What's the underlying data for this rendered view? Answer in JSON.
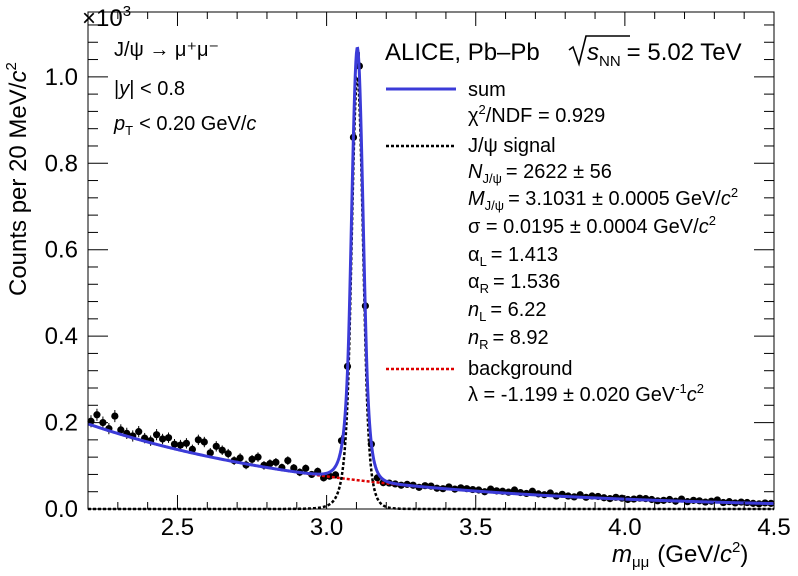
{
  "chart_data": {
    "type": "scatter",
    "experiment": "ALICE, Pb–Pb",
    "energy": "= 5.02 TeV",
    "sqrt_label": "s",
    "sqrt_sub": "NN",
    "y_multiplier": "×10",
    "y_multiplier_exp": "3",
    "ylabel": "Counts per 20 MeV/",
    "ylabel_c": "c",
    "ylabel_exp": "2",
    "xlabel_m": "m",
    "xlabel_sub": "μμ",
    "xlabel_unit": "(GeV/",
    "xlabel_c": "c",
    "xlabel_exp": "2",
    "xlabel_close": ")",
    "xlim": [
      2.2,
      4.5
    ],
    "ylim": [
      0,
      1.15
    ],
    "xticks": [
      2.5,
      3.0,
      3.5,
      4.0,
      4.5
    ],
    "xtick_labels": [
      "2.5",
      "3.0",
      "3.5",
      "4.0",
      "4.5"
    ],
    "yticks": [
      0.0,
      0.2,
      0.4,
      0.6,
      0.8,
      1.0
    ],
    "ytick_labels": [
      "0.0",
      "0.2",
      "0.4",
      "0.6",
      "0.8",
      "1.0"
    ],
    "selection": {
      "decay": "J/ψ → μ⁺μ⁻",
      "rapidity_y": "y",
      "rapidity_cut": "< 0.8",
      "pt_p": "p",
      "pt_sub": "T",
      "pt_cut": "< 0.20 GeV/",
      "pt_c": "c"
    },
    "legend": {
      "sum": "sum",
      "chi2": "χ",
      "chi2_rest": "/NDF = 0.929",
      "chi2_exp": "2",
      "signal": "J/ψ signal",
      "n_N": "N",
      "n_sub": "J/ψ",
      "n_val": "= 2622 ± 56",
      "m_M": "M",
      "m_sub": "J/ψ",
      "m_val": "= 3.1031 ± 0.0005 GeV/",
      "m_c": "c",
      "m_exp": "2",
      "sigma": "σ = 0.0195 ± 0.0004 GeV/",
      "sigma_c": "c",
      "sigma_exp": "2",
      "alphaL": "α",
      "alphaL_sub": "L",
      "alphaL_val": "= 1.413",
      "alphaR": "α",
      "alphaR_sub": "R",
      "alphaR_val": "= 1.536",
      "nL": "n",
      "nL_sub": "L",
      "nL_val": "= 6.22",
      "nR": "n",
      "nR_sub": "R",
      "nR_val": "= 8.92",
      "background": "background",
      "lambda": "λ = -1.199 ± 0.020 GeV",
      "lambda_exp1": "-1",
      "lambda_c": "c",
      "lambda_exp2": "2"
    },
    "colors": {
      "sum": "#3b3bd8",
      "signal": "#000000",
      "background": "#dd0000",
      "points": "#000000"
    },
    "fit": {
      "N": 2622,
      "M": 3.1031,
      "sigma": 0.0195,
      "alphaL": 1.413,
      "alphaR": 1.536,
      "nL": 6.22,
      "nR": 8.92,
      "lambda": -1.199,
      "bin_width": 0.02
    },
    "points": {
      "x": [
        2.21,
        2.23,
        2.25,
        2.27,
        2.29,
        2.31,
        2.33,
        2.35,
        2.37,
        2.39,
        2.41,
        2.43,
        2.45,
        2.47,
        2.49,
        2.51,
        2.53,
        2.55,
        2.57,
        2.59,
        2.61,
        2.63,
        2.65,
        2.67,
        2.69,
        2.71,
        2.73,
        2.75,
        2.77,
        2.79,
        2.81,
        2.83,
        2.85,
        2.87,
        2.89,
        2.91,
        2.93,
        2.95,
        2.97,
        2.99,
        3.01,
        3.03,
        3.05,
        3.07,
        3.09,
        3.11,
        3.13,
        3.15,
        3.17,
        3.19,
        3.21,
        3.23,
        3.25,
        3.27,
        3.29,
        3.31,
        3.33,
        3.35,
        3.37,
        3.39,
        3.41,
        3.43,
        3.45,
        3.47,
        3.49,
        3.51,
        3.53,
        3.55,
        3.57,
        3.59,
        3.61,
        3.63,
        3.65,
        3.67,
        3.69,
        3.71,
        3.73,
        3.75,
        3.77,
        3.79,
        3.81,
        3.83,
        3.85,
        3.87,
        3.89,
        3.91,
        3.93,
        3.95,
        3.97,
        3.99,
        4.01,
        4.03,
        4.05,
        4.07,
        4.09,
        4.11,
        4.13,
        4.15,
        4.17,
        4.19,
        4.21,
        4.23,
        4.25,
        4.27,
        4.29,
        4.31,
        4.33,
        4.35,
        4.37,
        4.39,
        4.41,
        4.43,
        4.45,
        4.47,
        4.49
      ],
      "y": [
        0.203,
        0.218,
        0.2,
        0.186,
        0.215,
        0.183,
        0.175,
        0.169,
        0.179,
        0.164,
        0.158,
        0.172,
        0.162,
        0.165,
        0.15,
        0.148,
        0.152,
        0.138,
        0.16,
        0.155,
        0.13,
        0.145,
        0.136,
        0.128,
        0.112,
        0.118,
        0.102,
        0.115,
        0.12,
        0.101,
        0.105,
        0.108,
        0.096,
        0.112,
        0.095,
        0.085,
        0.094,
        0.08,
        0.087,
        0.072,
        0.076,
        0.079,
        0.158,
        0.33,
        0.86,
        1.025,
        0.47,
        0.15,
        0.072,
        0.061,
        0.06,
        0.058,
        0.055,
        0.057,
        0.055,
        0.05,
        0.054,
        0.053,
        0.048,
        0.047,
        0.051,
        0.046,
        0.049,
        0.047,
        0.045,
        0.044,
        0.04,
        0.046,
        0.042,
        0.041,
        0.039,
        0.044,
        0.038,
        0.036,
        0.041,
        0.035,
        0.033,
        0.037,
        0.03,
        0.034,
        0.03,
        0.028,
        0.033,
        0.027,
        0.03,
        0.029,
        0.026,
        0.024,
        0.027,
        0.025,
        0.022,
        0.023,
        0.025,
        0.024,
        0.022,
        0.019,
        0.02,
        0.022,
        0.018,
        0.023,
        0.017,
        0.02,
        0.019,
        0.016,
        0.018,
        0.021,
        0.015,
        0.017,
        0.014,
        0.016,
        0.015,
        0.013,
        0.012,
        0.014,
        0.013
      ],
      "yerr": [
        0.014,
        0.014,
        0.014,
        0.013,
        0.014,
        0.013,
        0.013,
        0.013,
        0.013,
        0.012,
        0.012,
        0.013,
        0.012,
        0.012,
        0.012,
        0.012,
        0.012,
        0.011,
        0.012,
        0.012,
        0.011,
        0.012,
        0.011,
        0.011,
        0.01,
        0.011,
        0.01,
        0.01,
        0.011,
        0.01,
        0.01,
        0.01,
        0.009,
        0.01,
        0.009,
        0.009,
        0.009,
        0.008,
        0.009,
        0.008,
        0.008,
        0.008,
        0.012,
        0.018,
        0.029,
        0.032,
        0.021,
        0.012,
        0.008,
        0.008,
        0.007,
        0.007,
        0.007,
        0.007,
        0.007,
        0.007,
        0.007,
        0.007,
        0.007,
        0.006,
        0.007,
        0.006,
        0.007,
        0.006,
        0.006,
        0.006,
        0.006,
        0.006,
        0.006,
        0.006,
        0.006,
        0.006,
        0.006,
        0.006,
        0.006,
        0.005,
        0.005,
        0.006,
        0.005,
        0.005,
        0.005,
        0.005,
        0.005,
        0.005,
        0.005,
        0.005,
        0.005,
        0.005,
        0.005,
        0.005,
        0.004,
        0.004,
        0.005,
        0.005,
        0.004,
        0.004,
        0.004,
        0.004,
        0.004,
        0.004,
        0.004,
        0.004,
        0.004,
        0.004,
        0.004,
        0.004,
        0.004,
        0.004,
        0.004,
        0.004,
        0.004,
        0.004,
        0.003,
        0.004,
        0.004
      ]
    }
  }
}
